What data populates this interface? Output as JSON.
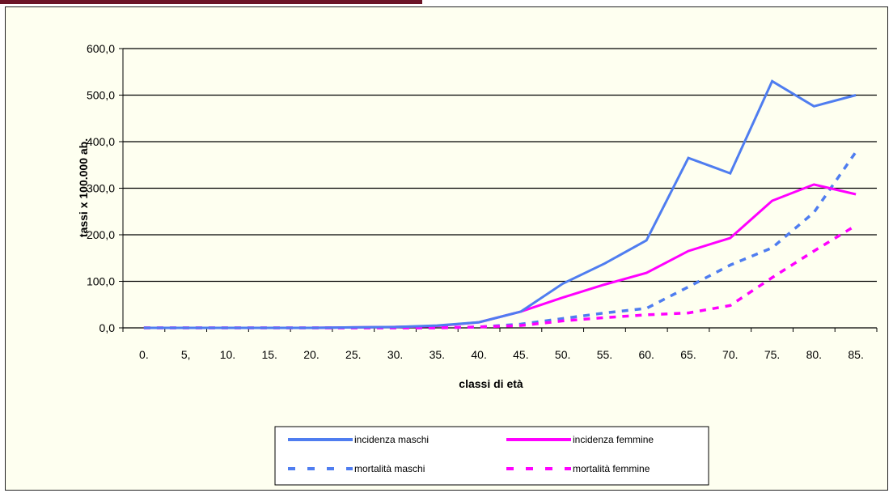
{
  "chart_data": {
    "type": "line",
    "title": "",
    "xlabel": "classi di età",
    "ylabel": "tassi x 100.000 ab.",
    "ylim": [
      0,
      600
    ],
    "yticks": [
      "0,0",
      "100,0",
      "200,0",
      "300,0",
      "400,0",
      "500,0",
      "600,0"
    ],
    "grid": true,
    "legend_position": "bottom",
    "categories": [
      "0.",
      "5,",
      "10.",
      "15.",
      "20.",
      "25.",
      "30.",
      "35.",
      "40.",
      "45.",
      "50.",
      "55.",
      "60.",
      "65.",
      "70.",
      "75.",
      "80.",
      "85."
    ],
    "series": [
      {
        "name": "incidenza maschi",
        "color": "#4f7df0",
        "style": "solid",
        "values": [
          0,
          0,
          0,
          0,
          0,
          1,
          2,
          5,
          12,
          35,
          95,
          138,
          188,
          365,
          332,
          530,
          476,
          500
        ]
      },
      {
        "name": "incidenza femmine",
        "color": "#ff00ff",
        "style": "solid",
        "values": [
          0,
          0,
          0,
          0,
          0,
          1,
          2,
          4,
          12,
          35,
          65,
          93,
          118,
          165,
          193,
          273,
          308,
          287
        ]
      },
      {
        "name": "mortalità maschi",
        "color": "#4f7df0",
        "style": "dashed",
        "values": [
          0,
          0,
          0,
          0,
          0,
          0,
          0,
          0,
          2,
          8,
          20,
          32,
          42,
          88,
          135,
          172,
          248,
          378
        ]
      },
      {
        "name": "mortalità femmine",
        "color": "#ff00ff",
        "style": "dashed",
        "values": [
          0,
          0,
          0,
          0,
          0,
          0,
          0,
          0,
          2,
          5,
          15,
          22,
          28,
          32,
          48,
          108,
          165,
          220
        ]
      }
    ]
  }
}
